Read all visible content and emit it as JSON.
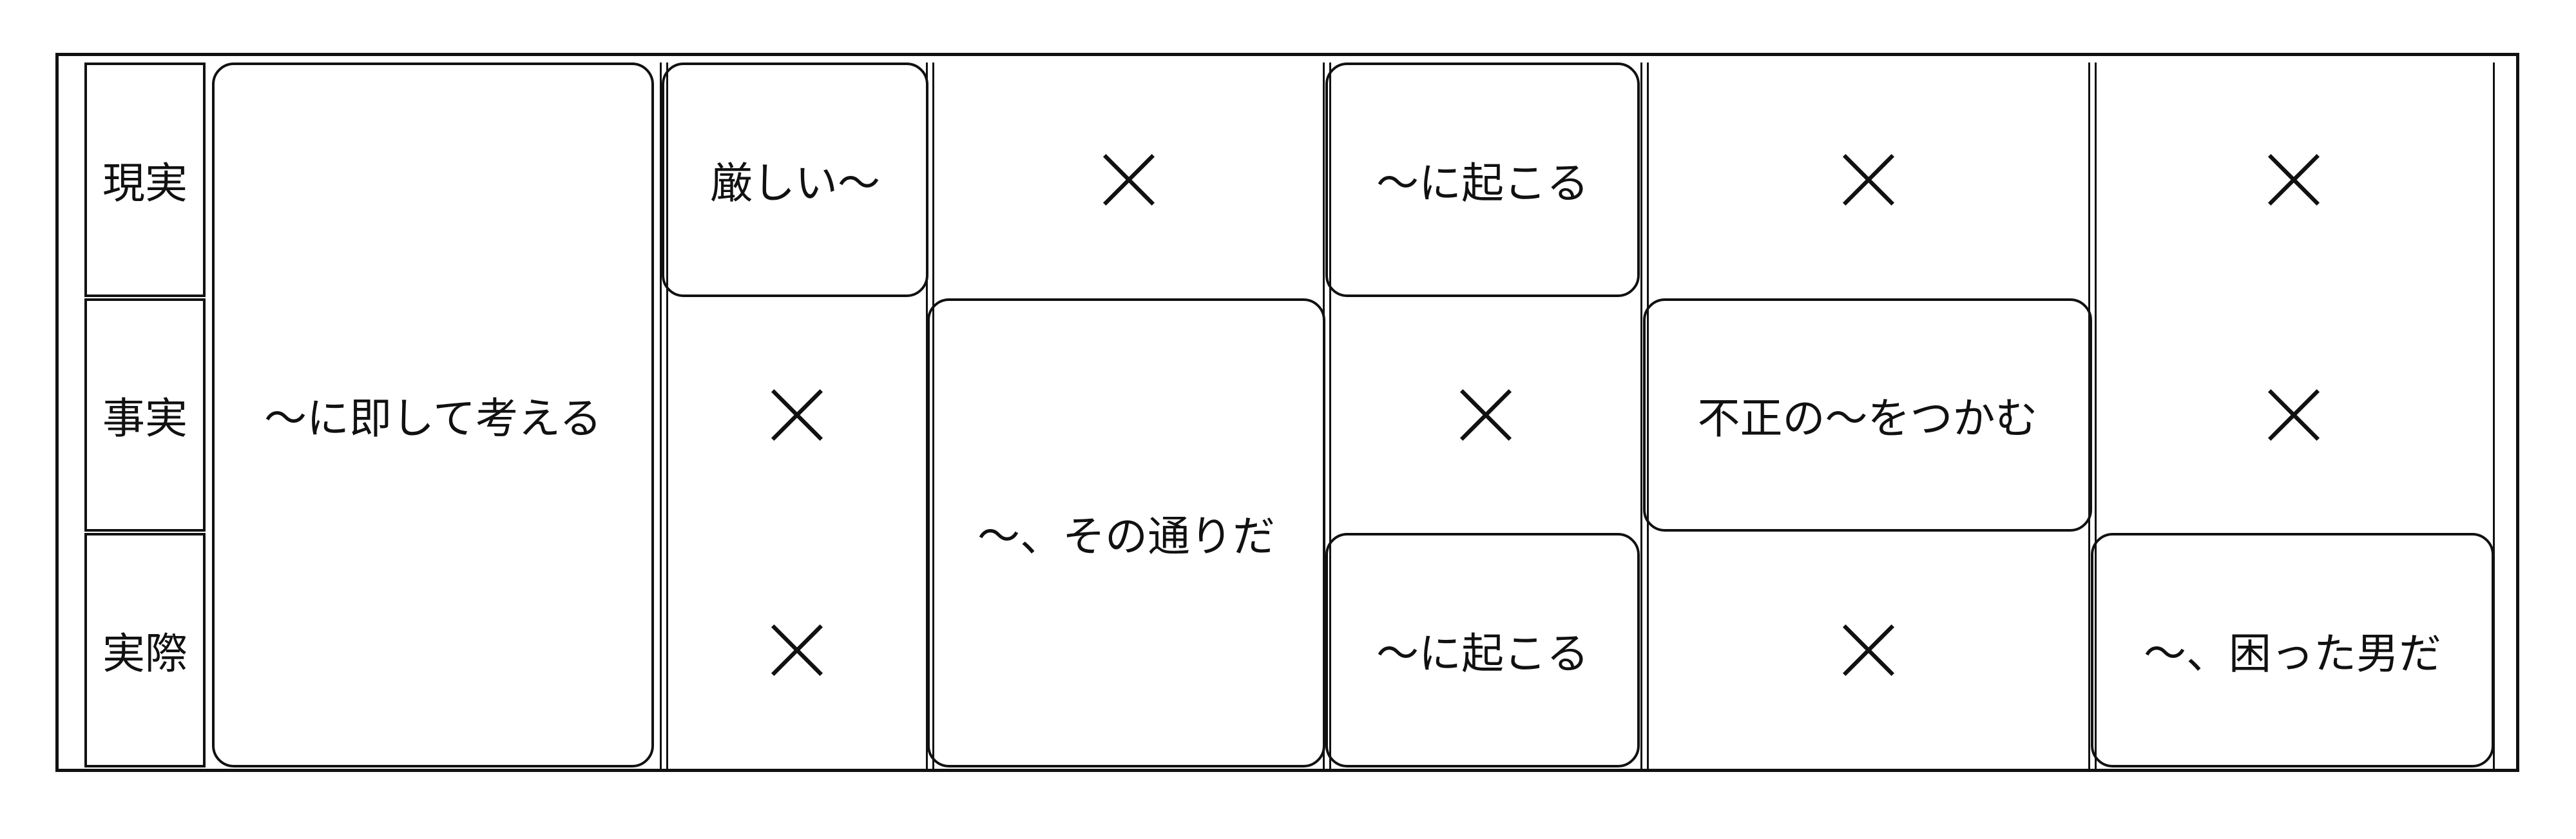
{
  "rows": [
    "現実",
    "事実",
    "実際"
  ],
  "phrases": {
    "c1_all": "～に即して考える",
    "c2_r1": "厳しい～",
    "c3_r23": "～、その通りだ",
    "c4_r1": "～に起こる",
    "c4_r3": "～に起こる",
    "c5_r2": "不正の～をつかむ",
    "c6_r3": "～、困った男だ"
  },
  "cross_icon": "x-mark-icon"
}
